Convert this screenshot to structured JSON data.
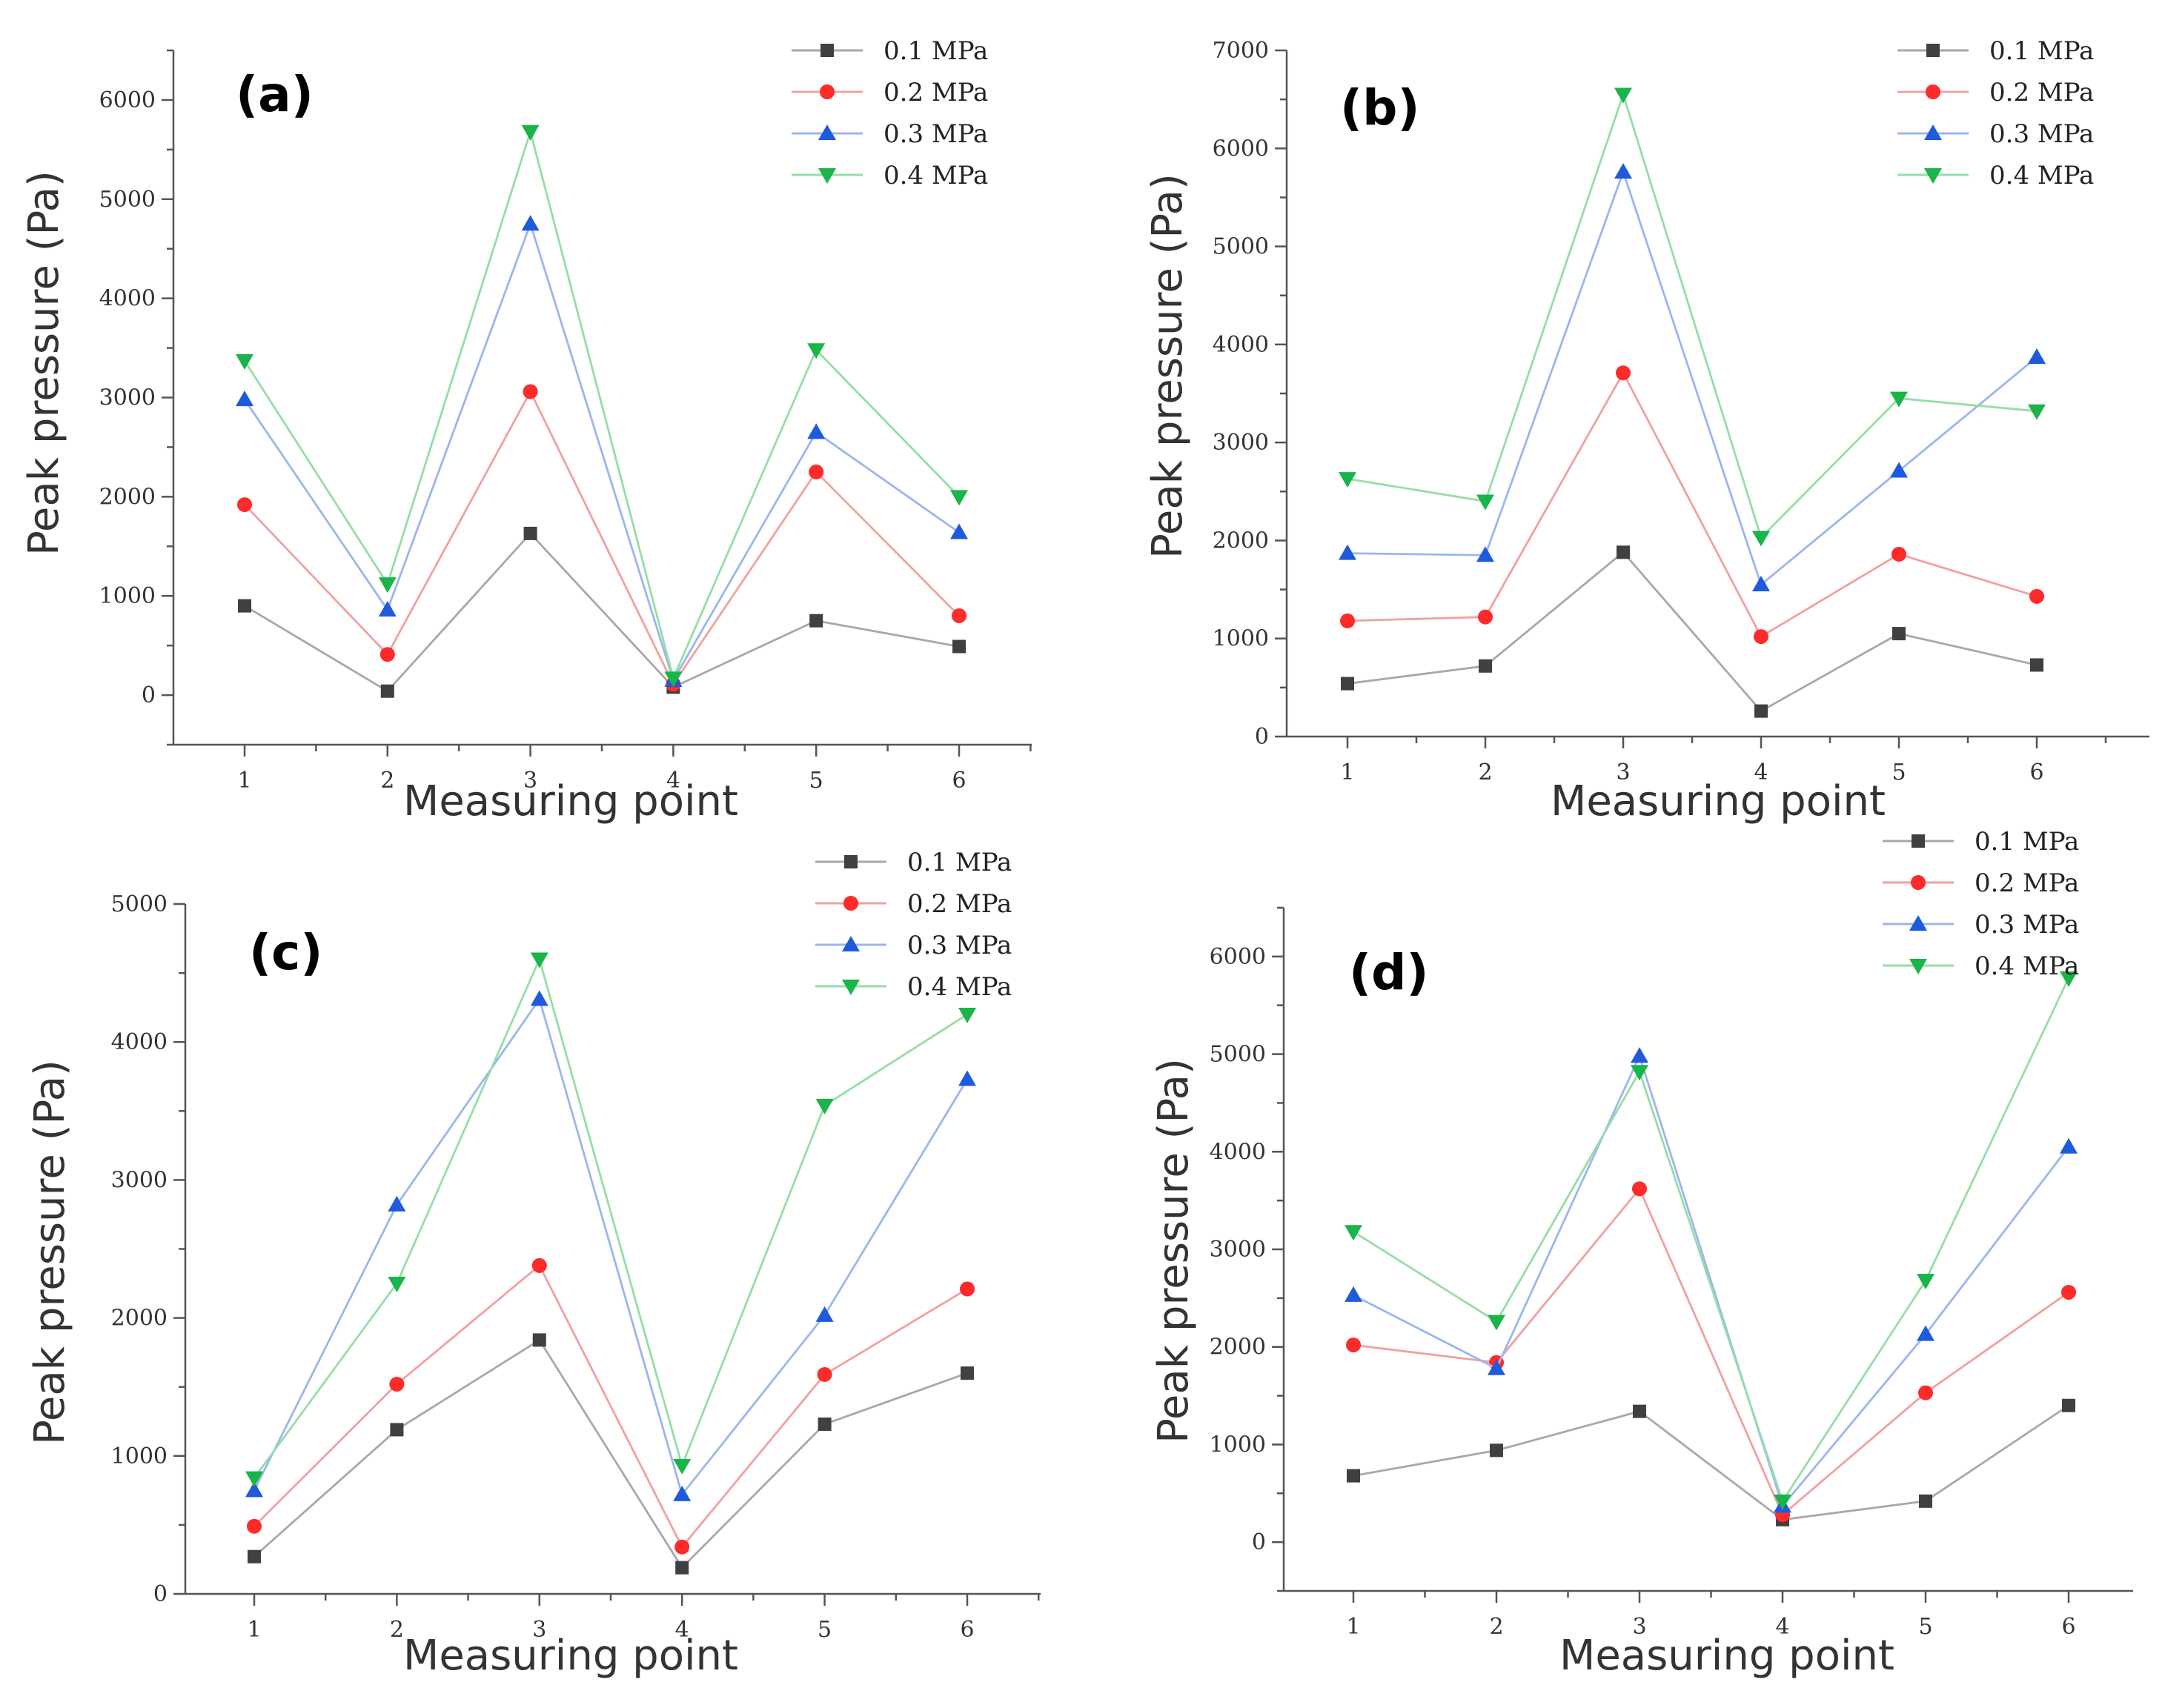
{
  "colors": {
    "0.1 MPa": "#404040",
    "0.2 MPa": "#ff2a2a",
    "0.3 MPa": "#1e5adc",
    "0.4 MPa": "#19b44a"
  },
  "line_colors": {
    "0.1 MPa": "#a8a8a8",
    "0.2 MPa": "#f2a0a0",
    "0.3 MPa": "#9bb6ee",
    "0.4 MPa": "#95dea5"
  },
  "markers": {
    "0.1 MPa": "square",
    "0.2 MPa": "circle",
    "0.3 MPa": "triangle-up",
    "0.4 MPa": "triangle-down"
  },
  "chart_data": [
    {
      "type": "line",
      "panel_label": "(a)",
      "xlabel": "Measuring point",
      "ylabel": "Peak pressure (Pa)",
      "x": [
        1,
        2,
        3,
        4,
        5,
        6
      ],
      "xticks": [
        "1",
        "2",
        "3",
        "4",
        "5",
        "6"
      ],
      "ylim": [
        -500,
        6500
      ],
      "yticks": [
        "0",
        "1000",
        "2000",
        "3000",
        "4000",
        "5000",
        "6000"
      ],
      "legend_position": "top-right",
      "series": [
        {
          "name": "0.1 MPa",
          "values": [
            900,
            40,
            1630,
            80,
            750,
            490
          ]
        },
        {
          "name": "0.2 MPa",
          "values": [
            1920,
            410,
            3060,
            110,
            2250,
            800
          ]
        },
        {
          "name": "0.3 MPa",
          "values": [
            2980,
            860,
            4750,
            150,
            2650,
            1640
          ]
        },
        {
          "name": "0.4 MPa",
          "values": [
            3370,
            1120,
            5680,
            170,
            3480,
            2000
          ]
        }
      ]
    },
    {
      "type": "line",
      "panel_label": "(b)",
      "xlabel": "Measuring point",
      "ylabel": "Peak pressure (Pa)",
      "x": [
        1,
        2,
        3,
        4,
        5,
        6
      ],
      "xticks": [
        "1",
        "2",
        "3",
        "4",
        "5",
        "6"
      ],
      "ylim": [
        0,
        7000
      ],
      "yticks": [
        "0",
        "1000",
        "2000",
        "3000",
        "4000",
        "5000",
        "6000",
        "7000"
      ],
      "legend_position": "top-right",
      "series": [
        {
          "name": "0.1 MPa",
          "values": [
            540,
            720,
            1880,
            260,
            1050,
            730
          ]
        },
        {
          "name": "0.2 MPa",
          "values": [
            1180,
            1220,
            3710,
            1020,
            1860,
            1430
          ]
        },
        {
          "name": "0.3 MPa",
          "values": [
            1870,
            1850,
            5760,
            1550,
            2710,
            3870
          ]
        },
        {
          "name": "0.4 MPa",
          "values": [
            2630,
            2400,
            6550,
            2030,
            3450,
            3320
          ]
        }
      ]
    },
    {
      "type": "line",
      "panel_label": "(c)",
      "xlabel": "Measuring point",
      "ylabel": "Peak pressure (Pa)",
      "x": [
        1,
        2,
        3,
        4,
        5,
        6
      ],
      "xticks": [
        "1",
        "2",
        "3",
        "4",
        "5",
        "6"
      ],
      "ylim": [
        0,
        5000
      ],
      "yticks": [
        "0",
        "1000",
        "2000",
        "3000",
        "4000",
        "5000"
      ],
      "legend_position": "top-right",
      "series": [
        {
          "name": "0.1 MPa",
          "values": [
            270,
            1190,
            1840,
            190,
            1230,
            1600
          ]
        },
        {
          "name": "0.2 MPa",
          "values": [
            490,
            1520,
            2380,
            340,
            1590,
            2210
          ]
        },
        {
          "name": "0.3 MPa",
          "values": [
            750,
            2820,
            4310,
            720,
            2020,
            3730
          ]
        },
        {
          "name": "0.4 MPa",
          "values": [
            840,
            2250,
            4600,
            930,
            3540,
            4200
          ]
        }
      ]
    },
    {
      "type": "line",
      "panel_label": "(d)",
      "xlabel": "Measuring point",
      "ylabel": "Peak pressure (Pa)",
      "x": [
        1,
        2,
        3,
        4,
        5,
        6
      ],
      "xticks": [
        "1",
        "2",
        "3",
        "4",
        "5",
        "6"
      ],
      "ylim": [
        -500,
        6500
      ],
      "yticks": [
        "0",
        "1000",
        "2000",
        "3000",
        "4000",
        "5000",
        "6000"
      ],
      "legend_position": "top-right",
      "series": [
        {
          "name": "0.1 MPa",
          "values": [
            680,
            940,
            1340,
            230,
            420,
            1400
          ]
        },
        {
          "name": "0.2 MPa",
          "values": [
            2020,
            1840,
            3620,
            280,
            1530,
            2560
          ]
        },
        {
          "name": "0.3 MPa",
          "values": [
            2530,
            1780,
            4980,
            370,
            2130,
            4050
          ]
        },
        {
          "name": "0.4 MPa",
          "values": [
            3180,
            2260,
            4820,
            420,
            2680,
            5780
          ]
        }
      ]
    }
  ]
}
